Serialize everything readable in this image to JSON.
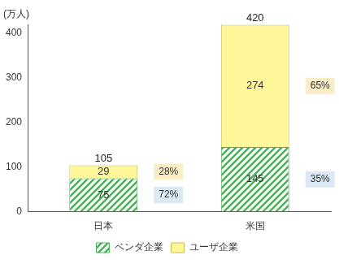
{
  "chart_data": {
    "type": "bar",
    "stacked": true,
    "data_labels": true,
    "grid": false,
    "legend": "bottom",
    "y_label": "(万人)",
    "categories": [
      "日本",
      "米国"
    ],
    "ylim": [
      0,
      420
    ],
    "yticks": [
      0,
      100,
      200,
      300,
      400
    ],
    "totals": [
      105,
      420
    ],
    "series": [
      {
        "name": "ベンダ企業",
        "color": "#4fae5c",
        "values": [
          75,
          145
        ],
        "shares": [
          72,
          35
        ],
        "share_labels": [
          "72%",
          "35%"
        ]
      },
      {
        "name": "ユーザ企業",
        "color": "#fff799",
        "values": [
          29,
          274
        ],
        "shares": [
          28,
          65
        ],
        "share_labels": [
          "28%",
          "65%"
        ]
      }
    ]
  }
}
